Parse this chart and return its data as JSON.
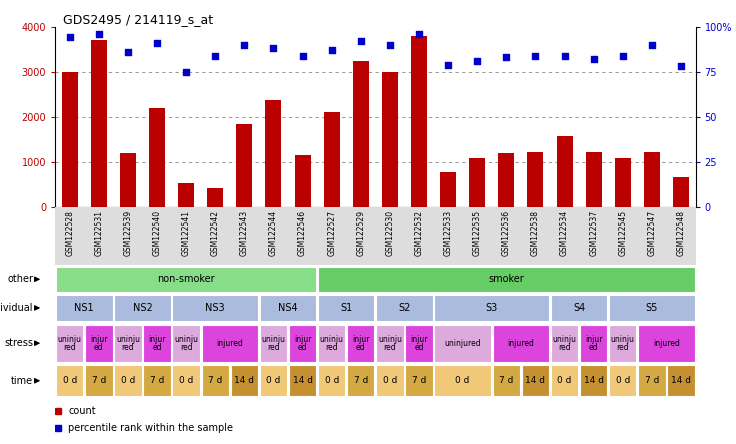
{
  "title": "GDS2495 / 214119_s_at",
  "samples": [
    "GSM122528",
    "GSM122531",
    "GSM122539",
    "GSM122540",
    "GSM122541",
    "GSM122542",
    "GSM122543",
    "GSM122544",
    "GSM122546",
    "GSM122527",
    "GSM122529",
    "GSM122530",
    "GSM122532",
    "GSM122533",
    "GSM122535",
    "GSM122536",
    "GSM122538",
    "GSM122534",
    "GSM122537",
    "GSM122545",
    "GSM122547",
    "GSM122548"
  ],
  "counts": [
    3000,
    3700,
    1200,
    2200,
    550,
    420,
    1850,
    2380,
    1150,
    2100,
    3250,
    3000,
    3800,
    780,
    1100,
    1200,
    1220,
    1580,
    1230,
    1100,
    1220,
    680
  ],
  "percentiles": [
    94,
    96,
    86,
    91,
    75,
    84,
    90,
    88,
    84,
    87,
    92,
    90,
    96,
    79,
    81,
    83,
    84,
    84,
    82,
    84,
    90,
    78
  ],
  "ylim_left": [
    0,
    4000
  ],
  "ylim_right": [
    0,
    100
  ],
  "yticks_left": [
    0,
    1000,
    2000,
    3000,
    4000
  ],
  "yticks_right": [
    0,
    25,
    50,
    75,
    100
  ],
  "bar_color": "#bb0000",
  "dot_color": "#0000cc",
  "chart_bg": "#ffffff",
  "other_row": {
    "label": "other",
    "groups": [
      {
        "text": "non-smoker",
        "start": 0,
        "end": 9,
        "color": "#88dd88"
      },
      {
        "text": "smoker",
        "start": 9,
        "end": 22,
        "color": "#66cc66"
      }
    ]
  },
  "individual_row": {
    "label": "individual",
    "groups": [
      {
        "text": "NS1",
        "start": 0,
        "end": 2,
        "color": "#aabbdd"
      },
      {
        "text": "NS2",
        "start": 2,
        "end": 4,
        "color": "#aabbdd"
      },
      {
        "text": "NS3",
        "start": 4,
        "end": 7,
        "color": "#aabbdd"
      },
      {
        "text": "NS4",
        "start": 7,
        "end": 9,
        "color": "#aabbdd"
      },
      {
        "text": "S1",
        "start": 9,
        "end": 11,
        "color": "#aabbdd"
      },
      {
        "text": "S2",
        "start": 11,
        "end": 13,
        "color": "#aabbdd"
      },
      {
        "text": "S3",
        "start": 13,
        "end": 17,
        "color": "#aabbdd"
      },
      {
        "text": "S4",
        "start": 17,
        "end": 19,
        "color": "#aabbdd"
      },
      {
        "text": "S5",
        "start": 19,
        "end": 22,
        "color": "#aabbdd"
      }
    ]
  },
  "stress_row": {
    "label": "stress",
    "spans": [
      {
        "start": 0,
        "end": 1,
        "text": "uninju\nred",
        "color": "#ddaadd"
      },
      {
        "start": 1,
        "end": 2,
        "text": "injur\ned",
        "color": "#dd44dd"
      },
      {
        "start": 2,
        "end": 3,
        "text": "uninju\nred",
        "color": "#ddaadd"
      },
      {
        "start": 3,
        "end": 4,
        "text": "injur\ned",
        "color": "#dd44dd"
      },
      {
        "start": 4,
        "end": 5,
        "text": "uninju\nred",
        "color": "#ddaadd"
      },
      {
        "start": 5,
        "end": 7,
        "text": "injured",
        "color": "#dd44dd"
      },
      {
        "start": 7,
        "end": 8,
        "text": "uninju\nred",
        "color": "#ddaadd"
      },
      {
        "start": 8,
        "end": 9,
        "text": "injur\ned",
        "color": "#dd44dd"
      },
      {
        "start": 9,
        "end": 10,
        "text": "uninju\nred",
        "color": "#ddaadd"
      },
      {
        "start": 10,
        "end": 11,
        "text": "injur\ned",
        "color": "#dd44dd"
      },
      {
        "start": 11,
        "end": 12,
        "text": "uninju\nred",
        "color": "#ddaadd"
      },
      {
        "start": 12,
        "end": 13,
        "text": "injur\ned",
        "color": "#dd44dd"
      },
      {
        "start": 13,
        "end": 15,
        "text": "uninjured",
        "color": "#ddaadd"
      },
      {
        "start": 15,
        "end": 17,
        "text": "injured",
        "color": "#dd44dd"
      },
      {
        "start": 17,
        "end": 18,
        "text": "uninju\nred",
        "color": "#ddaadd"
      },
      {
        "start": 18,
        "end": 19,
        "text": "injur\ned",
        "color": "#dd44dd"
      },
      {
        "start": 19,
        "end": 20,
        "text": "uninju\nred",
        "color": "#ddaadd"
      },
      {
        "start": 20,
        "end": 22,
        "text": "injured",
        "color": "#dd44dd"
      }
    ]
  },
  "time_row": {
    "label": "time",
    "spans": [
      {
        "start": 0,
        "end": 1,
        "text": "0 d",
        "color": "#f0c878"
      },
      {
        "start": 1,
        "end": 2,
        "text": "7 d",
        "color": "#d4a843"
      },
      {
        "start": 2,
        "end": 3,
        "text": "0 d",
        "color": "#f0c878"
      },
      {
        "start": 3,
        "end": 4,
        "text": "7 d",
        "color": "#d4a843"
      },
      {
        "start": 4,
        "end": 5,
        "text": "0 d",
        "color": "#f0c878"
      },
      {
        "start": 5,
        "end": 6,
        "text": "7 d",
        "color": "#d4a843"
      },
      {
        "start": 6,
        "end": 7,
        "text": "14 d",
        "color": "#c49030"
      },
      {
        "start": 7,
        "end": 8,
        "text": "0 d",
        "color": "#f0c878"
      },
      {
        "start": 8,
        "end": 9,
        "text": "14 d",
        "color": "#c49030"
      },
      {
        "start": 9,
        "end": 10,
        "text": "0 d",
        "color": "#f0c878"
      },
      {
        "start": 10,
        "end": 11,
        "text": "7 d",
        "color": "#d4a843"
      },
      {
        "start": 11,
        "end": 12,
        "text": "0 d",
        "color": "#f0c878"
      },
      {
        "start": 12,
        "end": 13,
        "text": "7 d",
        "color": "#d4a843"
      },
      {
        "start": 13,
        "end": 15,
        "text": "0 d",
        "color": "#f0c878"
      },
      {
        "start": 15,
        "end": 16,
        "text": "7 d",
        "color": "#d4a843"
      },
      {
        "start": 16,
        "end": 17,
        "text": "14 d",
        "color": "#c49030"
      },
      {
        "start": 17,
        "end": 18,
        "text": "0 d",
        "color": "#f0c878"
      },
      {
        "start": 18,
        "end": 19,
        "text": "14 d",
        "color": "#c49030"
      },
      {
        "start": 19,
        "end": 20,
        "text": "0 d",
        "color": "#f0c878"
      },
      {
        "start": 20,
        "end": 21,
        "text": "7 d",
        "color": "#d4a843"
      },
      {
        "start": 21,
        "end": 22,
        "text": "14 d",
        "color": "#c49030"
      }
    ]
  }
}
